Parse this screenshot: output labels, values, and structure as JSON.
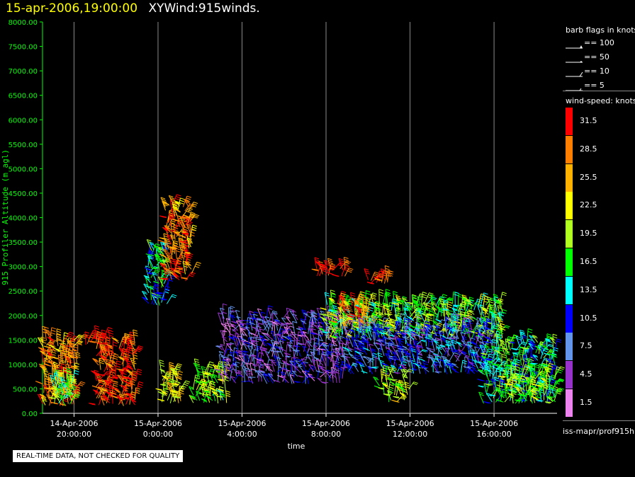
{
  "title": {
    "date": "15-apr-2006,19:00:00",
    "name": "XYWind:915winds."
  },
  "notice": "REAL-TIME DATA, NOT CHECKED FOR QUALITY",
  "source": "iss-mapr/prof915h",
  "barb_legend": {
    "title": "barb flags in knots",
    "items": [
      {
        "label": "== 100",
        "kind": "pennant"
      },
      {
        "label": "== 50",
        "kind": "half-pennant"
      },
      {
        "label": "== 10",
        "kind": "full"
      },
      {
        "label": "== 5",
        "kind": "half"
      }
    ]
  },
  "speed_legend": {
    "title": "wind-speed: knots",
    "levels": [
      {
        "label": "31.5",
        "color": "#ff0000"
      },
      {
        "label": "28.5",
        "color": "#ff7f00"
      },
      {
        "label": "25.5",
        "color": "#ffb300"
      },
      {
        "label": "22.5",
        "color": "#ffff00"
      },
      {
        "label": "19.5",
        "color": "#b0ff20"
      },
      {
        "label": "16.5",
        "color": "#00ff00"
      },
      {
        "label": "13.5",
        "color": "#00ffff"
      },
      {
        "label": "10.5",
        "color": "#0000ff"
      },
      {
        "label": "7.5",
        "color": "#6495ed"
      },
      {
        "label": "4.5",
        "color": "#9932cc"
      },
      {
        "label": "1.5",
        "color": "#ee82ee"
      }
    ]
  },
  "chart_data": {
    "type": "scatter",
    "xlabel": "time",
    "ylabel": "915 Profiler Altitude (m agl)",
    "ylim": [
      0,
      8000
    ],
    "xlim": [
      "2006-04-14 18:30",
      "2006-04-15 19:00"
    ],
    "y_ticks": [
      "0.00",
      "500.00",
      "1000.00",
      "1500.00",
      "2000.00",
      "2500.00",
      "3000.00",
      "3500.00",
      "4000.00",
      "4500.00",
      "5000.00",
      "5500.00",
      "6000.00",
      "6500.00",
      "7000.00",
      "7500.00",
      "8000.00"
    ],
    "x_ticks": [
      {
        "date": "14-Apr-2006",
        "time": "20:00:00"
      },
      {
        "date": "15-Apr-2006",
        "time": "0:00:00"
      },
      {
        "date": "15-Apr-2006",
        "time": "4:00:00"
      },
      {
        "date": "15-Apr-2006",
        "time": "8:00:00"
      },
      {
        "date": "15-Apr-2006",
        "time": "12:00:00"
      },
      {
        "date": "15-Apr-2006",
        "time": "16:00:00"
      }
    ],
    "grid": "vertical",
    "series": [
      {
        "time_start": "2006-04-14 18:30",
        "time_end": "2006-04-14 20:15",
        "alt_min": 150,
        "alt_max": 1550,
        "speed": 27
      },
      {
        "time_start": "2006-04-14 19:00",
        "time_end": "2006-04-14 20:00",
        "alt_min": 150,
        "alt_max": 700,
        "speed": 17
      },
      {
        "time_start": "2006-04-14 20:30",
        "time_end": "2006-04-14 21:30",
        "alt_min": 1400,
        "alt_max": 1600,
        "speed": 31
      },
      {
        "time_start": "2006-04-14 21:00",
        "time_end": "2006-04-14 23:00",
        "alt_min": 150,
        "alt_max": 1500,
        "speed": 30
      },
      {
        "time_start": "2006-04-14 23:30",
        "time_end": "2006-04-15 00:30",
        "alt_min": 2200,
        "alt_max": 3400,
        "speed": 14
      },
      {
        "time_start": "2006-04-15 00:20",
        "time_end": "2006-04-15 01:40",
        "alt_min": 2700,
        "alt_max": 4300,
        "speed": 28
      },
      {
        "time_start": "2006-04-15 00:10",
        "time_end": "2006-04-15 01:10",
        "alt_min": 200,
        "alt_max": 900,
        "speed": 22
      },
      {
        "time_start": "2006-04-15 01:40",
        "time_end": "2006-04-15 03:20",
        "alt_min": 200,
        "alt_max": 900,
        "speed": 19
      },
      {
        "time_start": "2006-04-15 03:00",
        "time_end": "2006-04-15 09:00",
        "alt_min": 600,
        "alt_max": 2000,
        "speed": 6
      },
      {
        "time_start": "2006-04-15 08:00",
        "time_end": "2006-04-15 16:30",
        "alt_min": 1500,
        "alt_max": 2300,
        "speed": 18
      },
      {
        "time_start": "2006-04-15 08:30",
        "time_end": "2006-04-15 10:00",
        "alt_min": 1700,
        "alt_max": 2300,
        "speed": 28
      },
      {
        "time_start": "2006-04-15 07:30",
        "time_end": "2006-04-15 09:00",
        "alt_min": 2800,
        "alt_max": 3000,
        "speed": 31
      },
      {
        "time_start": "2006-04-15 10:00",
        "time_end": "2006-04-15 11:00",
        "alt_min": 2650,
        "alt_max": 2750,
        "speed": 31
      },
      {
        "time_start": "2006-04-15 09:00",
        "time_end": "2006-04-15 16:00",
        "alt_min": 800,
        "alt_max": 1800,
        "speed": 9
      },
      {
        "time_start": "2006-04-15 10:30",
        "time_end": "2006-04-15 12:00",
        "alt_min": 200,
        "alt_max": 800,
        "speed": 20
      },
      {
        "time_start": "2006-04-15 15:30",
        "time_end": "2006-04-15 19:00",
        "alt_min": 200,
        "alt_max": 1500,
        "speed": 15
      },
      {
        "time_start": "2006-04-15 16:30",
        "time_end": "2006-04-15 19:00",
        "alt_min": 200,
        "alt_max": 800,
        "speed": 19
      }
    ]
  }
}
